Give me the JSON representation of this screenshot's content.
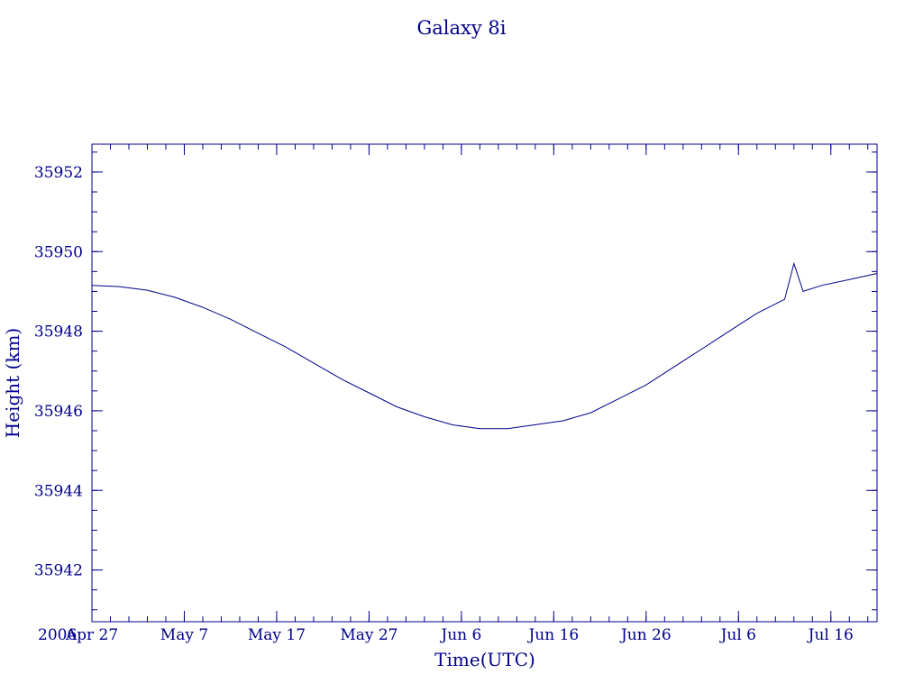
{
  "chart_data": {
    "type": "line",
    "title": "Galaxy 8i",
    "xlabel": "Time(UTC)",
    "ylabel": "Height (km)",
    "x_start_label": "2006",
    "xlim": [
      "2006-04-27",
      "2006-07-21"
    ],
    "ylim": [
      35940.7,
      35952.7
    ],
    "x_ticks": [
      "2006-04-27",
      "2006-05-07",
      "2006-05-17",
      "2006-05-27",
      "2006-06-06",
      "2006-06-16",
      "2006-06-26",
      "2006-07-06",
      "2006-07-16"
    ],
    "x_tick_labels": [
      "Apr 27",
      "May  7",
      "May 17",
      "May 27",
      "Jun  6",
      "Jun 16",
      "Jun 26",
      "Jul  6",
      "Jul 16"
    ],
    "y_ticks": [
      35942,
      35944,
      35946,
      35948,
      35950,
      35952
    ],
    "y_tick_labels": [
      "35942",
      "35944",
      "35946",
      "35948",
      "35950",
      "35952"
    ],
    "grid": false,
    "colors": {
      "axis": "#00008b",
      "line": "#00008b"
    },
    "series": [
      {
        "x": [
          "2006-04-27",
          "2006-04-30",
          "2006-05-03",
          "2006-05-06",
          "2006-05-09",
          "2006-05-12",
          "2006-05-15",
          "2006-05-18",
          "2006-05-21",
          "2006-05-24",
          "2006-05-27",
          "2006-05-30",
          "2006-06-02",
          "2006-06-05",
          "2006-06-08",
          "2006-06-11",
          "2006-06-14",
          "2006-06-17",
          "2006-06-20",
          "2006-06-23",
          "2006-06-26",
          "2006-06-29",
          "2006-07-02",
          "2006-07-05",
          "2006-07-08",
          "2006-07-11",
          "2006-07-12",
          "2006-07-13",
          "2006-07-15",
          "2006-07-18",
          "2006-07-21"
        ],
        "y": [
          35949.15,
          35949.12,
          35949.03,
          35948.85,
          35948.6,
          35948.3,
          35947.95,
          35947.6,
          35947.2,
          35946.8,
          35946.45,
          35946.1,
          35945.85,
          35945.65,
          35945.55,
          35945.55,
          35945.65,
          35945.75,
          35945.95,
          35946.3,
          35946.65,
          35947.1,
          35947.55,
          35948.0,
          35948.45,
          35948.8,
          35949.7,
          35949.0,
          35949.15,
          35949.3,
          35949.45
        ]
      }
    ]
  }
}
